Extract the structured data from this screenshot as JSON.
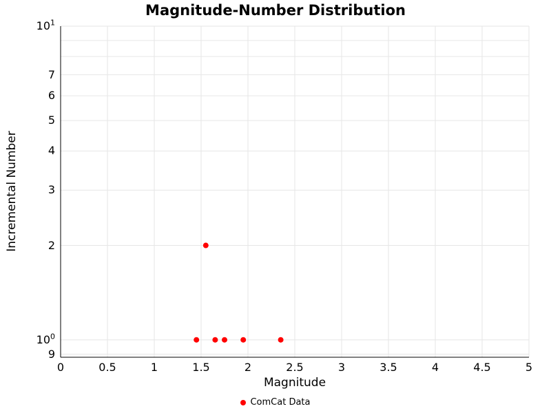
{
  "chart_data": {
    "type": "scatter",
    "title": "Magnitude-Number Distribution",
    "xlabel": "Magnitude",
    "ylabel": "Incremental Number",
    "x_range": [
      0,
      5
    ],
    "y_scale": "log",
    "y_range": [
      0.88,
      10
    ],
    "grid": true,
    "grid_color": "#e6e6e6",
    "axis_color": "#000000",
    "x_ticks": [
      {
        "v": 0,
        "label": "0"
      },
      {
        "v": 0.5,
        "label": "0.5"
      },
      {
        "v": 1,
        "label": "1"
      },
      {
        "v": 1.5,
        "label": "1.5"
      },
      {
        "v": 2,
        "label": "2"
      },
      {
        "v": 2.5,
        "label": "2.5"
      },
      {
        "v": 3,
        "label": "3"
      },
      {
        "v": 3.5,
        "label": "3.5"
      },
      {
        "v": 4,
        "label": "4"
      },
      {
        "v": 4.5,
        "label": "4.5"
      },
      {
        "v": 5,
        "label": "5"
      }
    ],
    "y_ticks": [
      {
        "v": 10,
        "base": "10",
        "exp": "1"
      },
      {
        "v": 7,
        "base": "7"
      },
      {
        "v": 6,
        "base": "6"
      },
      {
        "v": 5,
        "base": "5"
      },
      {
        "v": 4,
        "base": "4"
      },
      {
        "v": 3,
        "base": "3"
      },
      {
        "v": 2,
        "base": "2"
      },
      {
        "v": 1,
        "base": "10",
        "exp": "0"
      },
      {
        "v": 0.9,
        "base": "9"
      }
    ],
    "y_grid": [
      0.9,
      1,
      2,
      3,
      4,
      5,
      6,
      7,
      8,
      9,
      10
    ],
    "series": [
      {
        "name": "ComCat Data",
        "color": "#ff0000",
        "marker": "circle",
        "points": [
          [
            1.45,
            1
          ],
          [
            1.55,
            2
          ],
          [
            1.65,
            1
          ],
          [
            1.75,
            1
          ],
          [
            1.95,
            1
          ],
          [
            2.35,
            1
          ]
        ]
      }
    ],
    "legend": {
      "position": "bottom-center"
    }
  }
}
